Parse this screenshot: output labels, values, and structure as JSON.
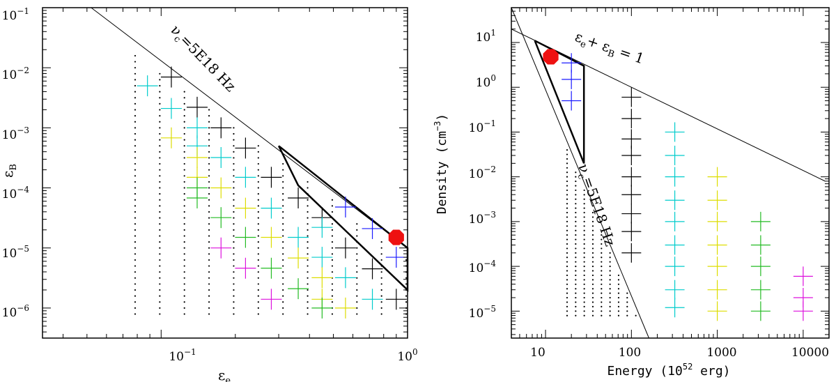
{
  "chart_data": [
    {
      "type": "scatter",
      "xscale": "log",
      "yscale": "log",
      "xlim": [
        0.033,
        1.0
      ],
      "ylim": [
        3.16e-07,
        0.1
      ],
      "xlabel": "ε_e",
      "ylabel": "ε_B",
      "xticks": [
        {
          "v": 0.1,
          "b": "10",
          "e": "−1"
        },
        {
          "v": 1,
          "b": "10",
          "e": "0"
        }
      ],
      "yticks": [
        {
          "v": 1e-06,
          "b": "10",
          "e": "−6"
        },
        {
          "v": 1e-05,
          "b": "10",
          "e": "−5"
        },
        {
          "v": 0.0001,
          "b": "10",
          "e": "−4"
        },
        {
          "v": 0.001,
          "b": "10",
          "e": "−3"
        },
        {
          "v": 0.01,
          "b": "10",
          "e": "−2"
        },
        {
          "v": 0.1,
          "b": "10",
          "e": "−1"
        }
      ],
      "annotations": [
        {
          "text": "ν_c=5E18 Hz"
        }
      ],
      "lines": [
        {
          "name": "ν_c=5E18 Hz",
          "points": [
            [
              0.052,
              0.1
            ],
            [
              1.0,
              1e-05
            ]
          ]
        }
      ],
      "region": [
        [
          0.3,
          0.0005
        ],
        [
          1.0,
          1e-05
        ],
        [
          1.0,
          2e-06
        ],
        [
          0.36,
          0.00011
        ],
        [
          0.3,
          0.0005
        ]
      ],
      "best_fit": {
        "x": 0.9,
        "y": 1.5e-05,
        "color": "#ee1111"
      },
      "series": [
        {
          "name": "black",
          "color": "#000000",
          "points": [
            [
              0.11,
              0.007
            ],
            [
              0.14,
              0.0022
            ],
            [
              0.175,
              0.001
            ],
            [
              0.22,
              0.00046
            ],
            [
              0.28,
              0.00015
            ],
            [
              0.36,
              6.8e-05
            ],
            [
              0.45,
              3.2e-05
            ],
            [
              0.56,
              1e-05
            ],
            [
              0.72,
              4.5e-06
            ],
            [
              0.9,
              1.4e-06
            ]
          ]
        },
        {
          "name": "cyan",
          "color": "#00cccc",
          "points": [
            [
              0.088,
              0.005
            ],
            [
              0.11,
              0.0021
            ],
            [
              0.14,
              0.001
            ],
            [
              0.14,
              0.0005
            ],
            [
              0.175,
              0.00032
            ],
            [
              0.22,
              0.00015
            ],
            [
              0.28,
              4.6e-05
            ],
            [
              0.36,
              1.5e-05
            ],
            [
              0.45,
              7e-06
            ],
            [
              0.45,
              2.2e-05
            ],
            [
              0.56,
              3.2e-06
            ],
            [
              0.72,
              1.4e-06
            ]
          ]
        },
        {
          "name": "blue",
          "color": "#1a1aff",
          "points": [
            [
              0.56,
              4.8e-05
            ],
            [
              0.72,
              2.1e-05
            ],
            [
              0.9,
              7e-06
            ]
          ]
        },
        {
          "name": "yellow",
          "color": "#dddd00",
          "points": [
            [
              0.11,
              0.00068
            ],
            [
              0.14,
              0.00032
            ],
            [
              0.14,
              0.00015
            ],
            [
              0.175,
              0.0001
            ],
            [
              0.22,
              4.6e-05
            ],
            [
              0.28,
              1.5e-05
            ],
            [
              0.36,
              6.8e-06
            ],
            [
              0.45,
              3.2e-06
            ],
            [
              0.45,
              1.4e-06
            ],
            [
              0.56,
              1e-06
            ]
          ]
        },
        {
          "name": "green",
          "color": "#22bb22",
          "points": [
            [
              0.14,
              0.0001
            ],
            [
              0.14,
              6.8e-05
            ],
            [
              0.175,
              3.2e-05
            ],
            [
              0.22,
              1.5e-05
            ],
            [
              0.28,
              4.6e-06
            ],
            [
              0.36,
              2.1e-06
            ],
            [
              0.45,
              1e-06
            ]
          ]
        },
        {
          "name": "magenta",
          "color": "#dd11dd",
          "points": [
            [
              0.175,
              1e-05
            ],
            [
              0.22,
              4.6e-06
            ],
            [
              0.28,
              1.4e-06
            ]
          ]
        }
      ]
    },
    {
      "type": "scatter",
      "xscale": "log",
      "yscale": "log",
      "xlim": [
        4,
        20000
      ],
      "ylim": [
        2.5e-06,
        60
      ],
      "xlabel": "Energy (10⁵² erg)",
      "ylabel": "Density (cm⁻³)",
      "xticks": [
        {
          "v": 10,
          "t": "10"
        },
        {
          "v": 100,
          "t": "100"
        },
        {
          "v": 1000,
          "t": "1000"
        },
        {
          "v": 10000,
          "t": "10000"
        }
      ],
      "yticks": [
        {
          "v": 1e-05,
          "b": "10",
          "e": "−5"
        },
        {
          "v": 0.0001,
          "b": "10",
          "e": "−4"
        },
        {
          "v": 0.001,
          "b": "10",
          "e": "−3"
        },
        {
          "v": 0.01,
          "b": "10",
          "e": "−2"
        },
        {
          "v": 0.1,
          "b": "10",
          "e": "−1"
        },
        {
          "v": 1,
          "b": "10",
          "e": "0"
        },
        {
          "v": 10,
          "b": "10",
          "e": "1"
        }
      ],
      "annotations": [
        {
          "text": "ε_e+ ε_B = 1"
        },
        {
          "text": "ν_c=5E18 Hz"
        }
      ],
      "lines": [
        {
          "name": "ε_e+ ε_B = 1",
          "points": [
            [
              4,
              20
            ],
            [
              18000,
              0.008
            ]
          ]
        },
        {
          "name": "ν_c=5E18 Hz",
          "points": [
            [
              4,
              60
            ],
            [
              160,
              2.5e-06
            ]
          ]
        }
      ],
      "region": [
        [
          7.5,
          11
        ],
        [
          28,
          3.0
        ],
        [
          28,
          0.02
        ],
        [
          7.5,
          11
        ]
      ],
      "best_fit": {
        "x": 11.5,
        "y": 4.8,
        "color": "#ee1111"
      },
      "series": [
        {
          "name": "blue",
          "color": "#1a1aff",
          "points": [
            [
              20,
              3.5
            ],
            [
              20,
              1.5
            ],
            [
              20,
              0.5
            ]
          ]
        },
        {
          "name": "black",
          "color": "#000000",
          "points": [
            [
              100,
              0.6
            ],
            [
              100,
              0.2
            ],
            [
              100,
              0.07
            ],
            [
              100,
              0.03
            ],
            [
              100,
              0.01
            ],
            [
              100,
              0.004
            ],
            [
              100,
              0.0015
            ],
            [
              100,
              0.0006
            ],
            [
              100,
              0.0002
            ]
          ]
        },
        {
          "name": "cyan",
          "color": "#00cccc",
          "points": [
            [
              320,
              0.1
            ],
            [
              320,
              0.03
            ],
            [
              320,
              0.01
            ],
            [
              320,
              0.003
            ],
            [
              320,
              0.001
            ],
            [
              320,
              0.0003
            ],
            [
              320,
              0.0001
            ],
            [
              320,
              3e-05
            ],
            [
              320,
              1.2e-05
            ]
          ]
        },
        {
          "name": "yellow",
          "color": "#dddd00",
          "points": [
            [
              1000,
              0.01
            ],
            [
              1000,
              0.003
            ],
            [
              1000,
              0.001
            ],
            [
              1000,
              0.0003
            ],
            [
              1000,
              0.0001
            ],
            [
              1000,
              3e-05
            ],
            [
              1000,
              1e-05
            ]
          ]
        },
        {
          "name": "green",
          "color": "#22bb22",
          "points": [
            [
              3200,
              0.001
            ],
            [
              3200,
              0.0003
            ],
            [
              3200,
              0.0001
            ],
            [
              3200,
              3e-05
            ],
            [
              3200,
              1e-05
            ]
          ]
        },
        {
          "name": "magenta",
          "color": "#dd11dd",
          "points": [
            [
              10000,
              6e-05
            ],
            [
              10000,
              2e-05
            ],
            [
              10000,
              1e-05
            ]
          ]
        }
      ]
    }
  ]
}
